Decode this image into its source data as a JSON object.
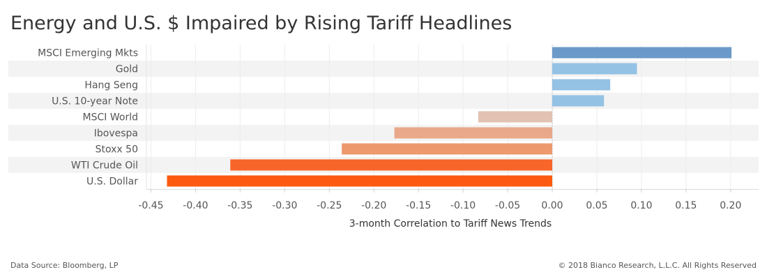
{
  "chart_data": {
    "type": "bar",
    "orientation": "horizontal",
    "title": "Energy and U.S. $ Impaired by Rising Tariff Headlines",
    "xlabel": "3-month Correlation to Tariff News Trends",
    "ylabel": "",
    "categories": [
      "MSCI Emerging Mkts",
      "Gold",
      "Hang Seng",
      "U.S. 10-year Note",
      "MSCI World",
      "Ibovespa",
      "Stoxx 50",
      "WTI Crude Oil",
      "U.S. Dollar"
    ],
    "values": [
      0.201,
      0.095,
      0.065,
      0.058,
      -0.083,
      -0.177,
      -0.236,
      -0.361,
      -0.432
    ],
    "colors": [
      "#6b9ac8",
      "#93c2e4",
      "#93c2e4",
      "#93c2e4",
      "#e2c2b2",
      "#e9a88a",
      "#ee986e",
      "#f76628",
      "#fb5a10"
    ],
    "xlim": [
      -0.47,
      0.232
    ],
    "xticks": [
      "-0.45",
      "-0.40",
      "-0.35",
      "-0.30",
      "-0.25",
      "-0.20",
      "-0.15",
      "-0.10",
      "-0.05",
      "0.00",
      "0.05",
      "0.10",
      "0.15",
      "0.20"
    ],
    "xtick_values": [
      -0.45,
      -0.4,
      -0.35,
      -0.3,
      -0.25,
      -0.2,
      -0.15,
      -0.1,
      -0.05,
      0.0,
      0.05,
      0.1,
      0.15,
      0.2
    ],
    "band_color": "#f3f3f3",
    "grid": true
  },
  "footer": {
    "source": "Data Source: Bloomberg, LP",
    "copyright": "© 2018 Bianco Research, L.L.C. All Rights Reserved"
  }
}
